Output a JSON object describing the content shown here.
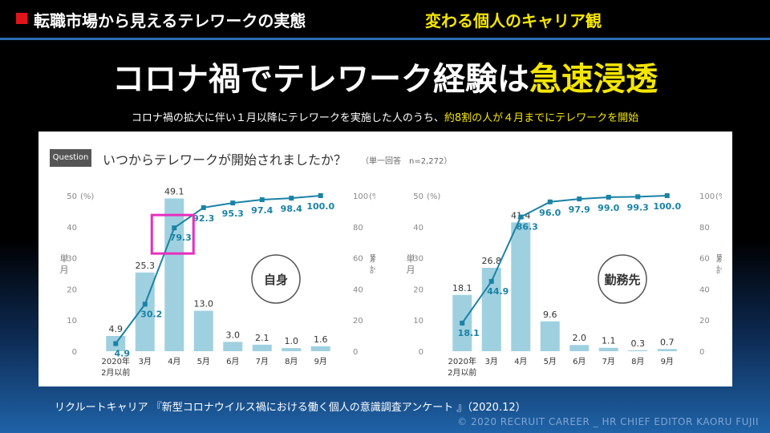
{
  "header": {
    "title": "転職市場から見えるテレワークの実態",
    "subtitle": "変わる個人のキャリア観",
    "colors": {
      "bullet": "#e0141a",
      "accent": "#f5e600",
      "rule": "#2c6db5"
    }
  },
  "headline": {
    "part1": "コロナ禍でテレワーク経験は",
    "part2": "急速浸透"
  },
  "subline": {
    "part1": "コロナ禍の拡大に伴い１月以降にテレワークを実施した人のうち、",
    "part2": "約8割の人が４月までにテレワークを開始"
  },
  "question": {
    "badge": "Question",
    "text": "いつからテレワークが開始されましたか？",
    "note": "（単一回答　n=2,272）"
  },
  "chart_data": [
    {
      "type": "bar",
      "title": "自身",
      "categories": [
        "2020年\n2月以前",
        "3月",
        "4月",
        "5月",
        "6月",
        "7月",
        "8月",
        "9月"
      ],
      "series": [
        {
          "name": "単月",
          "values": [
            4.9,
            25.3,
            49.1,
            13.0,
            3.0,
            2.1,
            1.0,
            1.6
          ]
        },
        {
          "name": "累計",
          "values": [
            4.9,
            30.2,
            79.3,
            92.3,
            95.3,
            97.4,
            98.4,
            100.0
          ]
        }
      ],
      "y_left": {
        "label": "単月",
        "unit": "(%)",
        "ylim": [
          0,
          50
        ],
        "ticks": [
          0,
          10,
          20,
          30,
          40,
          50
        ]
      },
      "y_right": {
        "label": "累計",
        "unit": "(%)",
        "ylim": [
          0,
          100
        ],
        "ticks": [
          0,
          20,
          40,
          60,
          80,
          100
        ]
      },
      "highlight_index": 2,
      "colors": {
        "bar": "#9fd0e0",
        "line": "#1a82a6",
        "highlight": "#e62fbd"
      }
    },
    {
      "type": "bar",
      "title": "勤務先",
      "categories": [
        "2020年\n2月以前",
        "3月",
        "4月",
        "5月",
        "6月",
        "7月",
        "8月",
        "9月"
      ],
      "series": [
        {
          "name": "単月",
          "values": [
            18.1,
            26.8,
            41.4,
            9.6,
            2.0,
            1.1,
            0.3,
            0.7
          ]
        },
        {
          "name": "累計",
          "values": [
            18.1,
            44.9,
            86.3,
            96.0,
            97.9,
            99.0,
            99.3,
            100.0
          ]
        }
      ],
      "y_left": {
        "label": "単月",
        "unit": "(%)",
        "ylim": [
          0,
          50
        ],
        "ticks": [
          0,
          10,
          20,
          30,
          40,
          50
        ]
      },
      "y_right": {
        "label": "累計",
        "unit": "(%)",
        "ylim": [
          0,
          100
        ],
        "ticks": [
          0,
          20,
          40,
          60,
          80,
          100
        ]
      },
      "highlight_index": null,
      "colors": {
        "bar": "#9fd0e0",
        "line": "#1a82a6"
      }
    }
  ],
  "footer": {
    "source": "リクルートキャリア 『新型コロナウイルス禍における働く個人の意識調査アンケート 』（2020.12）",
    "copyright": "© 2020  RECRUIT CAREER _ HR CHIEF EDITOR  KAORU FUJII"
  }
}
